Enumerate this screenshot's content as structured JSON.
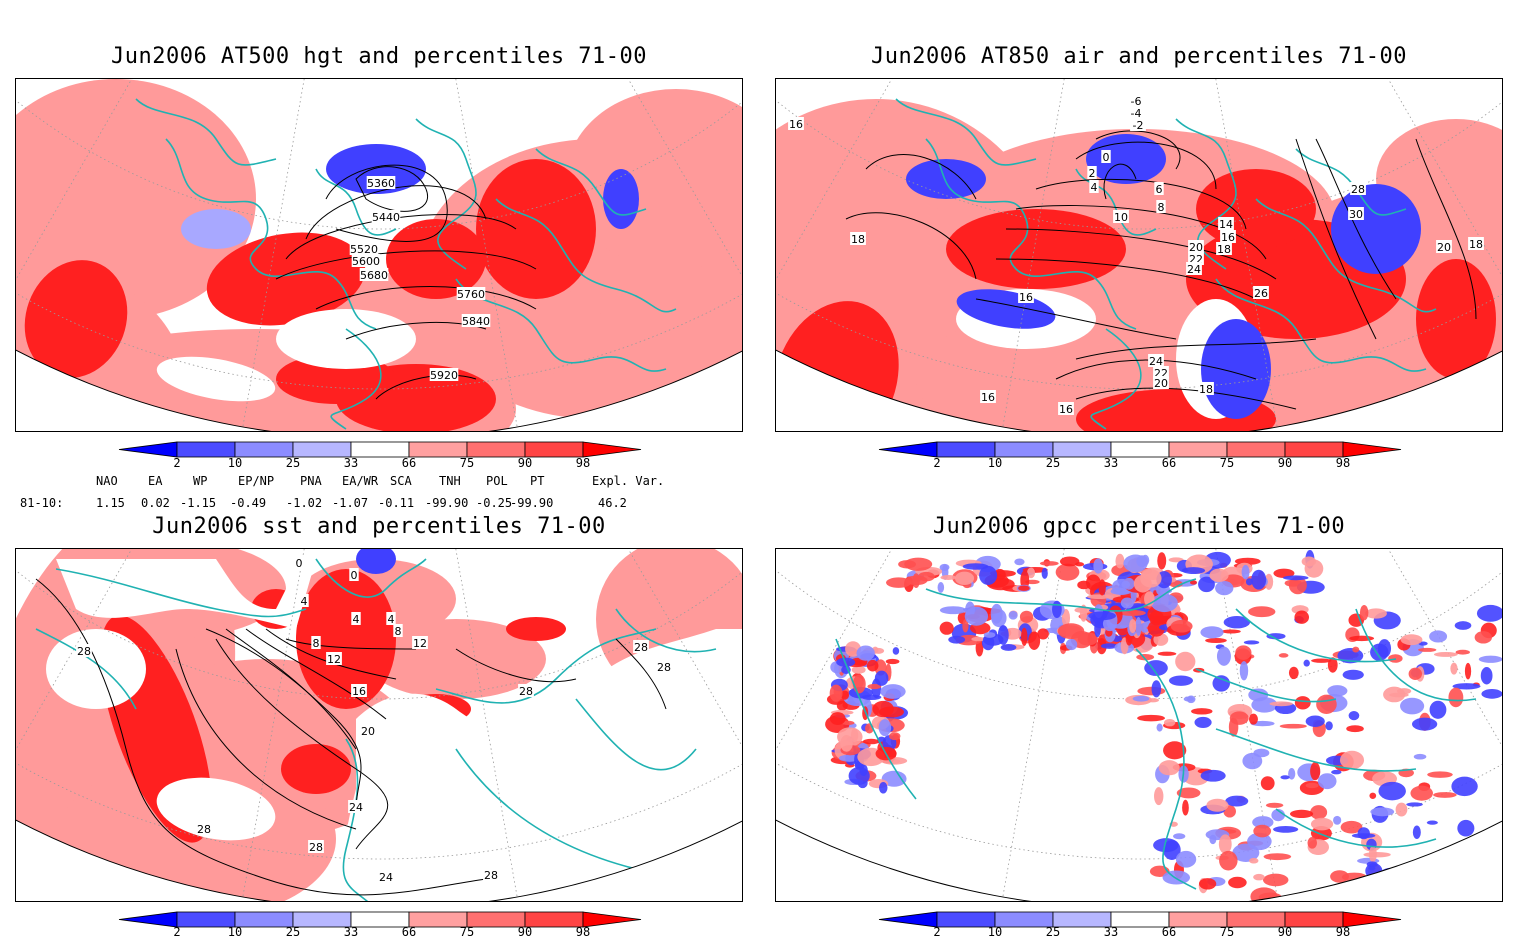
{
  "panels": [
    {
      "title": "Jun2006 AT500 hgt and percentiles 71-00",
      "contour_labels": [
        "5360",
        "5440",
        "5520",
        "5600",
        "5680",
        "5760",
        "5840",
        "5920"
      ]
    },
    {
      "title": "Jun2006 AT850 air and percentiles 71-00",
      "contour_labels": [
        "-6",
        "-4",
        "-2",
        "0",
        "2",
        "4",
        "6",
        "8",
        "10",
        "14",
        "16",
        "18",
        "20",
        "22",
        "24",
        "26",
        "28",
        "30",
        "16",
        "18",
        "16",
        "18",
        "20",
        "24",
        "22",
        "20",
        "18",
        "16",
        "16"
      ]
    },
    {
      "title": "Jun2006 sst and percentiles 71-00",
      "contour_labels": [
        "0",
        "0",
        "4",
        "4",
        "4",
        "8",
        "8",
        "12",
        "12",
        "16",
        "20",
        "24",
        "28",
        "28",
        "28",
        "28",
        "28",
        "24",
        "28",
        "28"
      ]
    },
    {
      "title": "Jun2006 gpcc percentiles 71-00",
      "contour_labels": []
    }
  ],
  "colorbar": {
    "ticks": [
      "2",
      "10",
      "25",
      "33",
      "66",
      "75",
      "90",
      "98"
    ],
    "colors": {
      "blue_dark": "#0000ff",
      "blue_mid": "#4b4bff",
      "blue_light": "#8c8cff",
      "blue_pale": "#b7b7ff",
      "red_pale": "#ffa0a0",
      "red_light": "#ff7070",
      "red_mid": "#ff4444",
      "red_dark": "#ff0000"
    }
  },
  "indices": {
    "headers": [
      "NAO",
      "EA",
      "WP",
      "EP/NP",
      "PNA",
      "EA/WR",
      "SCA",
      "TNH",
      "POL",
      "PT",
      "Expl. Var."
    ],
    "row_label": "81-10:",
    "values": [
      "1.15",
      "0.02",
      "-1.15",
      "-0.49",
      "-1.02",
      "-1.07",
      "-0.11",
      "-99.90",
      "-0.25",
      "-99.90",
      "46.2"
    ]
  },
  "colors": {
    "coast": "#20b2b2",
    "contour": "#000000",
    "grid": "#9a9a9a",
    "red": "#ff2020",
    "pink": "#ff9a9a",
    "blue": "#4040ff"
  }
}
